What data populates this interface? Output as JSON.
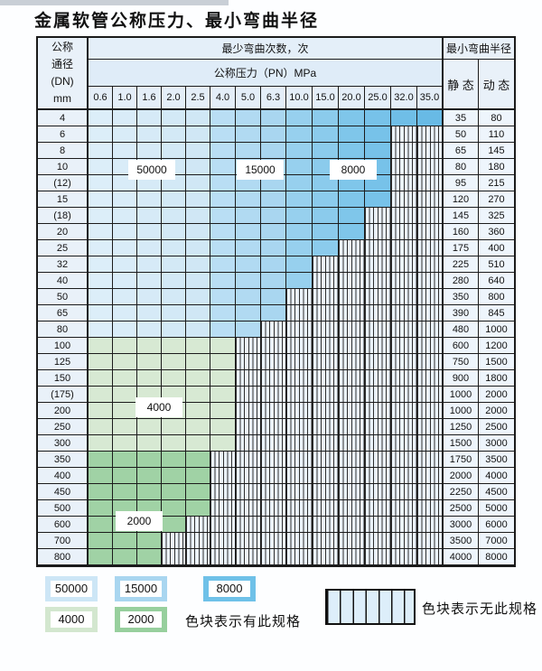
{
  "title": "金属软管公称压力、最小弯曲半径",
  "table": {
    "corner": {
      "line1": "公称",
      "line2": "通径",
      "line3": "(DN)",
      "line4": "mm"
    },
    "bend_header": "最少弯曲次数，次",
    "radius_header": "最小弯曲半径",
    "pn_header": "公称压力（PN）MPa",
    "static_header": "静 态",
    "dynamic_header": "动 态",
    "pressures": [
      "0.6",
      "1.0",
      "1.6",
      "2.0",
      "2.5",
      "4.0",
      "5.0",
      "6.3",
      "10.0",
      "15.0",
      "20.0",
      "25.0",
      "32.0",
      "35.0"
    ],
    "rows": [
      {
        "dn": "4",
        "static": "35",
        "dynamic": "80",
        "family": "blue",
        "last": 13
      },
      {
        "dn": "6",
        "static": "50",
        "dynamic": "110",
        "family": "blue",
        "last": 11
      },
      {
        "dn": "8",
        "static": "65",
        "dynamic": "145",
        "family": "blue",
        "last": 11
      },
      {
        "dn": "10",
        "static": "80",
        "dynamic": "180",
        "family": "blue",
        "last": 11
      },
      {
        "dn": "(12)",
        "static": "95",
        "dynamic": "215",
        "family": "blue",
        "last": 11
      },
      {
        "dn": "15",
        "static": "120",
        "dynamic": "270",
        "family": "blue",
        "last": 11
      },
      {
        "dn": "(18)",
        "static": "145",
        "dynamic": "325",
        "family": "blue",
        "last": 10
      },
      {
        "dn": "20",
        "static": "160",
        "dynamic": "360",
        "family": "blue",
        "last": 10
      },
      {
        "dn": "25",
        "static": "175",
        "dynamic": "400",
        "family": "blue",
        "last": 9
      },
      {
        "dn": "32",
        "static": "225",
        "dynamic": "510",
        "family": "blue",
        "last": 8
      },
      {
        "dn": "40",
        "static": "280",
        "dynamic": "640",
        "family": "blue",
        "last": 8
      },
      {
        "dn": "50",
        "static": "350",
        "dynamic": "800",
        "family": "blue",
        "last": 7
      },
      {
        "dn": "65",
        "static": "390",
        "dynamic": "845",
        "family": "blue",
        "last": 7
      },
      {
        "dn": "80",
        "static": "480",
        "dynamic": "1000",
        "family": "blue",
        "last": 6
      },
      {
        "dn": "100",
        "static": "600",
        "dynamic": "1200",
        "family": "green4",
        "last": 5
      },
      {
        "dn": "125",
        "static": "750",
        "dynamic": "1500",
        "family": "green4",
        "last": 5
      },
      {
        "dn": "150",
        "static": "900",
        "dynamic": "1800",
        "family": "green4",
        "last": 5
      },
      {
        "dn": "(175)",
        "static": "1000",
        "dynamic": "2000",
        "family": "green4",
        "last": 5
      },
      {
        "dn": "200",
        "static": "1000",
        "dynamic": "2000",
        "family": "green4",
        "last": 5
      },
      {
        "dn": "250",
        "static": "1250",
        "dynamic": "2500",
        "family": "green4",
        "last": 5
      },
      {
        "dn": "300",
        "static": "1500",
        "dynamic": "3000",
        "family": "green4",
        "last": 5
      },
      {
        "dn": "350",
        "static": "1750",
        "dynamic": "3500",
        "family": "green2",
        "last": 4
      },
      {
        "dn": "400",
        "static": "2000",
        "dynamic": "4000",
        "family": "green2",
        "last": 4
      },
      {
        "dn": "450",
        "static": "2250",
        "dynamic": "4500",
        "family": "green2",
        "last": 4
      },
      {
        "dn": "500",
        "static": "2500",
        "dynamic": "5000",
        "family": "green2",
        "last": 4
      },
      {
        "dn": "600",
        "static": "3000",
        "dynamic": "6000",
        "family": "green2",
        "last": 3
      },
      {
        "dn": "700",
        "static": "3500",
        "dynamic": "7000",
        "family": "green2",
        "last": 2
      },
      {
        "dn": "800",
        "static": "4000",
        "dynamic": "8000",
        "family": "green2",
        "last": 2
      }
    ]
  },
  "overlay_labels": {
    "l50000": "50000",
    "l15000": "15000",
    "l8000": "8000",
    "l4000": "4000",
    "l2000": "2000"
  },
  "colors": {
    "blue_cols": [
      "#dceef9",
      "#d9ecf8",
      "#d6eaf7",
      "#d3e9f6",
      "#d0e7f5",
      "#b9def4",
      "#b1daf2",
      "#a9d6f0",
      "#97d0ee",
      "#8bcbec",
      "#7fc6ea",
      "#77c2e9",
      "#6fbee7",
      "#68bae5"
    ],
    "green_4000": "#d7e9d3",
    "green_2000": "#a0d2a5",
    "hatch_bg": "#ebf3fb"
  },
  "legend": {
    "row1": [
      {
        "label": "50000",
        "color": "#cde6f6"
      },
      {
        "label": "15000",
        "color": "#a9d6f0"
      },
      {
        "label": "8000",
        "color": "#6fc1e8"
      }
    ],
    "row2": [
      {
        "label": "4000",
        "color": "#d3e7cf"
      },
      {
        "label": "2000",
        "color": "#97cf9d"
      }
    ],
    "has_spec_text": "色块表示有此规格",
    "no_spec_text": "色块表示无此规格"
  }
}
